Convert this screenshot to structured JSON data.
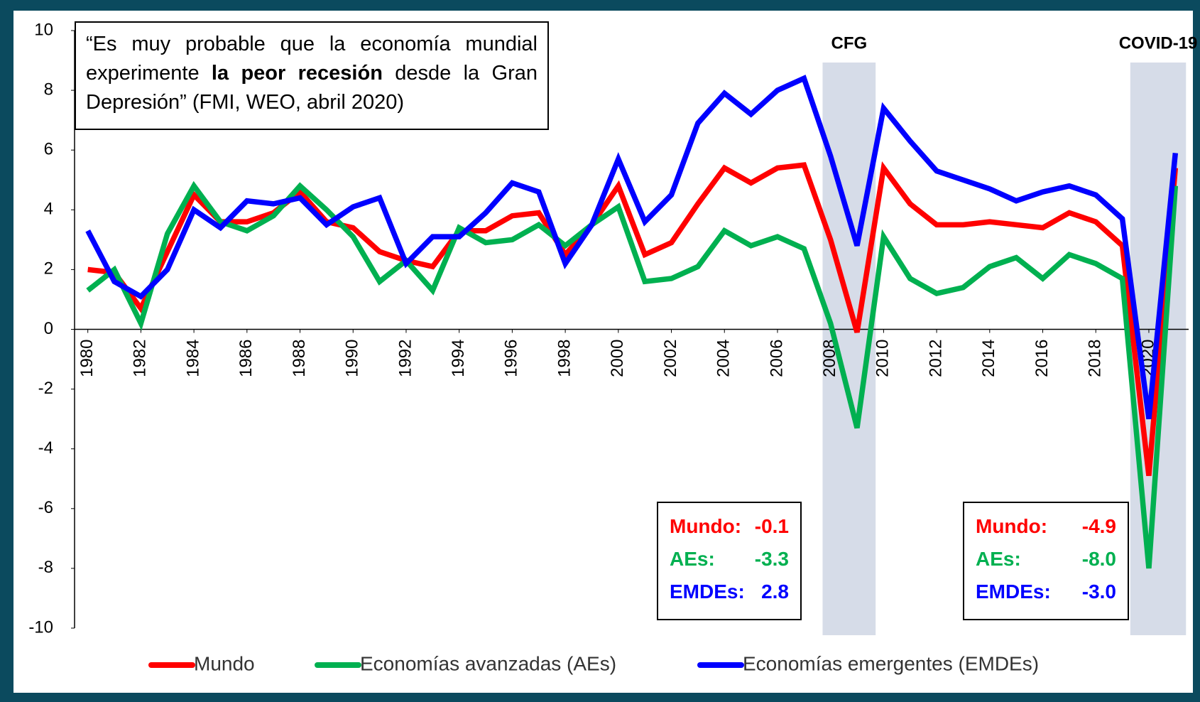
{
  "chart_data": {
    "type": "line",
    "x": [
      1980,
      1981,
      1982,
      1983,
      1984,
      1985,
      1986,
      1987,
      1988,
      1989,
      1990,
      1991,
      1992,
      1993,
      1994,
      1995,
      1996,
      1997,
      1998,
      1999,
      2000,
      2001,
      2002,
      2003,
      2004,
      2005,
      2006,
      2007,
      2008,
      2009,
      2010,
      2011,
      2012,
      2013,
      2014,
      2015,
      2016,
      2017,
      2018,
      2019,
      2020,
      2021
    ],
    "xlim": [
      1979.5,
      2021.5
    ],
    "xticks": [
      1980,
      1982,
      1984,
      1986,
      1988,
      1990,
      1992,
      1994,
      1996,
      1998,
      2000,
      2002,
      2004,
      2006,
      2008,
      2010,
      2012,
      2014,
      2016,
      2018,
      2020
    ],
    "ylim": [
      -10,
      10
    ],
    "yticks": [
      -10,
      -8,
      -6,
      -4,
      -2,
      0,
      2,
      4,
      6,
      8,
      10
    ],
    "series": [
      {
        "name": "Mundo",
        "color": "#ff0000",
        "values": [
          2.0,
          1.9,
          0.7,
          2.6,
          4.5,
          3.6,
          3.6,
          3.9,
          4.6,
          3.6,
          3.4,
          2.6,
          2.3,
          2.1,
          3.3,
          3.3,
          3.8,
          3.9,
          2.5,
          3.5,
          4.8,
          2.5,
          2.9,
          4.2,
          5.4,
          4.9,
          5.4,
          5.5,
          3.0,
          -0.1,
          5.4,
          4.2,
          3.5,
          3.5,
          3.6,
          3.5,
          3.4,
          3.9,
          3.6,
          2.8,
          -4.9,
          5.4
        ]
      },
      {
        "name": "Economías avanzadas (AEs)",
        "color": "#00b050",
        "values": [
          1.3,
          2.0,
          0.2,
          3.2,
          4.8,
          3.6,
          3.3,
          3.8,
          4.8,
          4.0,
          3.1,
          1.6,
          2.3,
          1.3,
          3.4,
          2.9,
          3.0,
          3.5,
          2.8,
          3.5,
          4.1,
          1.6,
          1.7,
          2.1,
          3.3,
          2.8,
          3.1,
          2.7,
          0.2,
          -3.3,
          3.1,
          1.7,
          1.2,
          1.4,
          2.1,
          2.4,
          1.7,
          2.5,
          2.2,
          1.7,
          -8.0,
          4.8
        ]
      },
      {
        "name": "Economías emergentes (EMDEs)",
        "color": "#0000ff",
        "values": [
          3.3,
          1.6,
          1.1,
          2.0,
          4.0,
          3.4,
          4.3,
          4.2,
          4.4,
          3.5,
          4.1,
          4.4,
          2.2,
          3.1,
          3.1,
          3.9,
          4.9,
          4.6,
          2.2,
          3.5,
          5.7,
          3.6,
          4.5,
          6.9,
          7.9,
          7.2,
          8.0,
          8.4,
          5.8,
          2.8,
          7.4,
          6.3,
          5.3,
          5.0,
          4.7,
          4.3,
          4.6,
          4.8,
          4.5,
          3.7,
          -3.0,
          5.9
        ]
      }
    ],
    "shaded": [
      {
        "label": "CFG",
        "from": 2007.7,
        "to": 2009.7
      },
      {
        "label": "COVID-19",
        "from": 2019.3,
        "to": 2021.4
      }
    ],
    "quote": {
      "part1": "“Es muy probable que la economía mundial experimente ",
      "bold": "la peor recesión",
      "part2": " desde la Gran Depresión” (FMI, WEO, abril 2020)"
    },
    "summary_boxes": [
      {
        "rows": [
          {
            "label": "Mundo:",
            "value": "-0.1"
          },
          {
            "label": "AEs:",
            "value": "-3.3"
          },
          {
            "label": "EMDEs:",
            "value": "2.8"
          }
        ]
      },
      {
        "rows": [
          {
            "label": "Mundo:",
            "value": "-4.9"
          },
          {
            "label": "AEs:",
            "value": "-8.0"
          },
          {
            "label": "EMDEs:",
            "value": "-3.0"
          }
        ]
      }
    ]
  }
}
